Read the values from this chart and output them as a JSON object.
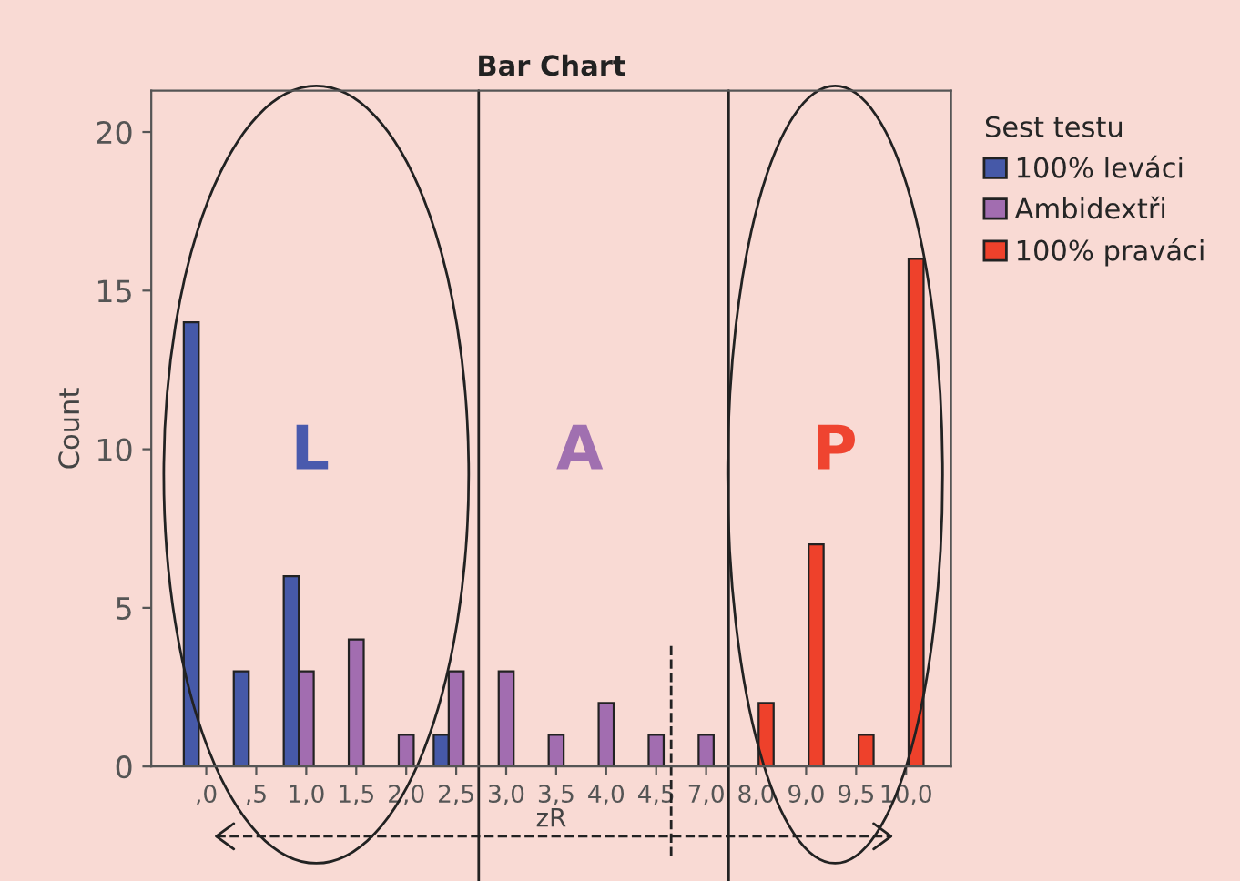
{
  "chart_data": {
    "type": "bar",
    "title": "Bar Chart",
    "xlabel": "zR",
    "ylabel": "Count",
    "legend_title": "Sest testu",
    "categories": [
      ",0",
      ",5",
      "1,0",
      "1,5",
      "2,0",
      "2,5",
      "3,0",
      "3,5",
      "4,0",
      "4,5",
      "7,0",
      "8,0",
      "9,0",
      "9,5",
      "10,0"
    ],
    "series": [
      {
        "name": "100% leváci",
        "color": "#4659a8",
        "values": [
          14,
          3,
          6,
          null,
          null,
          1,
          null,
          null,
          null,
          null,
          null,
          null,
          null,
          null,
          null
        ]
      },
      {
        "name": "Ambidextři",
        "color": "#a26db0",
        "values": [
          null,
          null,
          3,
          4,
          1,
          3,
          3,
          1,
          2,
          1,
          1,
          null,
          null,
          null,
          null
        ]
      },
      {
        "name": "100% praváci",
        "color": "#ee412b",
        "values": [
          null,
          null,
          null,
          null,
          null,
          null,
          null,
          null,
          null,
          null,
          null,
          2,
          7,
          1,
          16
        ]
      }
    ],
    "ylim": [
      0,
      21.3
    ],
    "yticks": [
      0,
      5,
      10,
      15,
      20
    ],
    "grid": false,
    "legend": "right",
    "annotations": [
      "L",
      "A",
      "P"
    ]
  }
}
